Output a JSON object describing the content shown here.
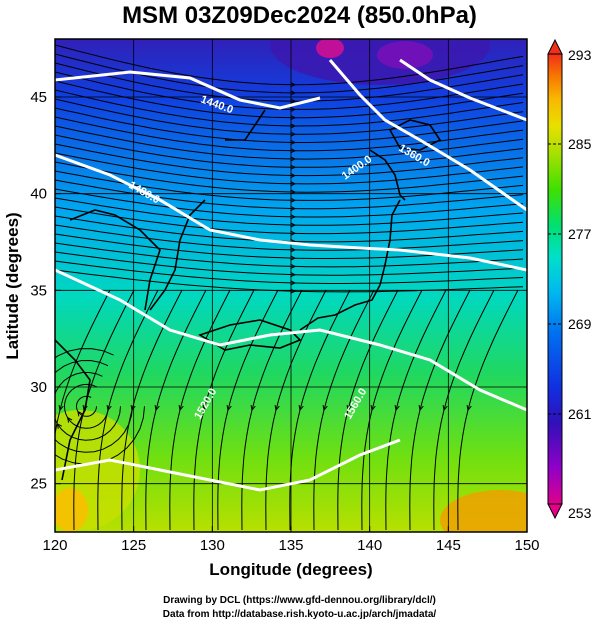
{
  "title": "MSM 03Z09Dec2024 (850.0hPa)",
  "x_axis": {
    "label": "Longitude (degrees)",
    "ticks": [
      "120",
      "125",
      "130",
      "135",
      "140",
      "145",
      "150"
    ]
  },
  "y_axis": {
    "label": "Latitude  (degrees)",
    "ticks": [
      "25",
      "30",
      "35",
      "40",
      "45"
    ]
  },
  "colorbar": {
    "ticks": [
      "293",
      "285",
      "277",
      "269",
      "261",
      "253"
    ],
    "min": 253,
    "max": 293,
    "colors": [
      "#e0008c",
      "#9000c8",
      "#3010b8",
      "#1030e0",
      "#0070f0",
      "#00b8f0",
      "#00e0c8",
      "#00e070",
      "#40e000",
      "#a8e000",
      "#e8e000",
      "#f8b800",
      "#f87800",
      "#f03018"
    ]
  },
  "contour_labels": [
    "1440.0",
    "1480.0",
    "1400.0",
    "1360.0",
    "1520.0",
    "1560.0"
  ],
  "credits": [
    "Drawing by DCL (https://www.gfd-dennou.org/library/dcl/)",
    "Data from http://database.rish.kyoto-u.ac.jp/arch/jmadata/"
  ]
}
